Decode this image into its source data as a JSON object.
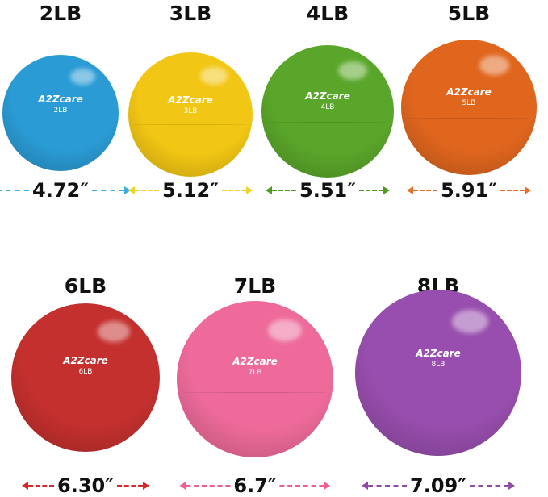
{
  "brand": "A2Zcare",
  "balls": [
    {
      "weight": "2LB",
      "label": "2LB",
      "diameter": "4.72″",
      "color": "#2a9bd4",
      "arrow_color": "#3aaee0"
    },
    {
      "weight": "3LB",
      "label": "3LB",
      "diameter": "5.12″",
      "color": "#f2c614",
      "arrow_color": "#f2d22a"
    },
    {
      "weight": "4LB",
      "label": "4LB",
      "diameter": "5.51″",
      "color": "#5aa62a",
      "arrow_color": "#4f9a1f"
    },
    {
      "weight": "5LB",
      "label": "5LB",
      "diameter": "5.91″",
      "color": "#e0661e",
      "arrow_color": "#e4702a"
    },
    {
      "weight": "6LB",
      "label": "6LB",
      "diameter": "6.30″",
      "color": "#c4302e",
      "arrow_color": "#d42a2a"
    },
    {
      "weight": "7LB",
      "label": "7LB",
      "diameter": "6.7″",
      "color": "#ee6a9a",
      "arrow_color": "#ea5f94"
    },
    {
      "weight": "8LB",
      "label": "8LB",
      "diameter": "7.09″",
      "color": "#984eae",
      "arrow_color": "#8f4aa6"
    }
  ]
}
